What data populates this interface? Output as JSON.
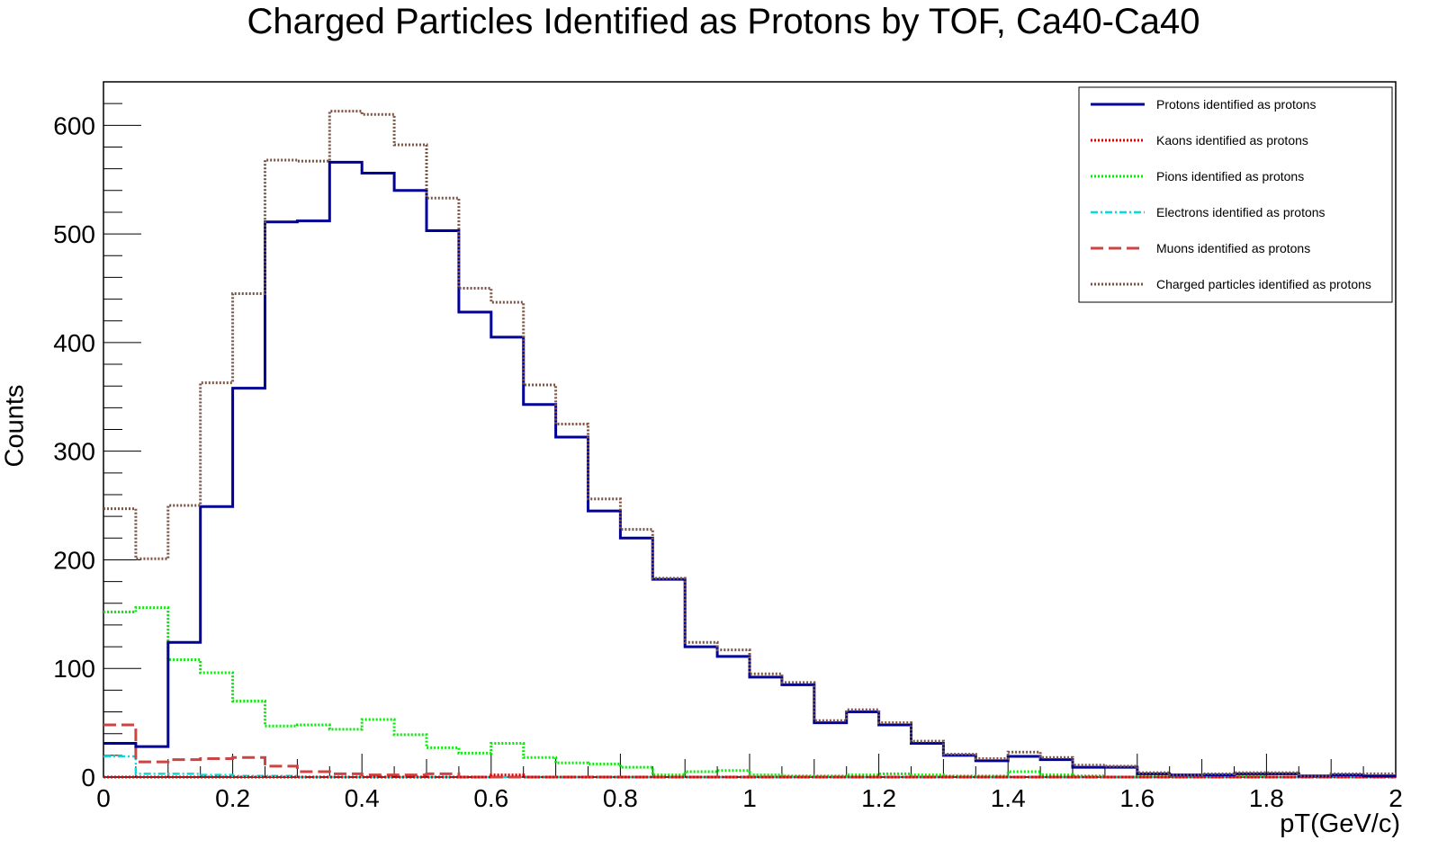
{
  "chart_data": {
    "type": "line",
    "title": "Charged Particles Identified as Protons by TOF, Ca40-Ca40",
    "xlabel": "pT(GeV/c)",
    "ylabel": "Counts",
    "xlim": [
      0,
      2
    ],
    "ylim": [
      0,
      640
    ],
    "bin_width": 0.05,
    "x_ticks": [
      "0",
      "0.2",
      "0.4",
      "0.6",
      "0.8",
      "1",
      "1.2",
      "1.4",
      "1.6",
      "1.8",
      "2"
    ],
    "y_ticks": [
      "0",
      "100",
      "200",
      "300",
      "400",
      "500",
      "600"
    ],
    "legend_position": "top-right",
    "series": [
      {
        "name": "Protons identified as protons",
        "color": "#000099",
        "style": "solid",
        "values": [
          31,
          28,
          124,
          249,
          358,
          511,
          512,
          566,
          556,
          540,
          503,
          428,
          405,
          343,
          313,
          245,
          220,
          182,
          120,
          111,
          92,
          85,
          50,
          60,
          48,
          31,
          20,
          15,
          19,
          16,
          9,
          9,
          3,
          2,
          2,
          3,
          3,
          1,
          2,
          1
        ]
      },
      {
        "name": "Kaons identified as protons",
        "color": "#dd0000",
        "style": "dotted",
        "values": [
          0,
          0,
          0,
          0,
          0,
          0,
          0,
          0,
          0,
          0,
          0,
          0,
          2,
          0,
          0,
          0,
          0,
          0,
          0,
          0,
          0,
          0,
          0,
          0,
          0,
          0,
          0,
          0,
          0,
          0,
          0,
          0,
          0,
          0,
          0,
          0,
          0,
          0,
          0,
          0
        ]
      },
      {
        "name": "Pions identified as protons",
        "color": "#00ee00",
        "style": "dotted",
        "values": [
          152,
          156,
          108,
          96,
          70,
          47,
          48,
          44,
          53,
          39,
          27,
          22,
          31,
          18,
          13,
          12,
          9,
          2,
          5,
          6,
          2,
          1,
          1,
          2,
          3,
          2,
          1,
          1,
          5,
          2,
          1,
          0,
          1,
          0,
          1,
          1,
          3,
          0,
          1,
          1
        ]
      },
      {
        "name": "Electrons identified as protons",
        "color": "#00dddd",
        "style": "dashdot",
        "values": [
          19,
          3,
          3,
          2,
          1,
          1,
          0,
          0,
          0,
          0,
          0,
          0,
          0,
          0,
          0,
          0,
          0,
          0,
          0,
          0,
          0,
          0,
          0,
          0,
          0,
          0,
          0,
          0,
          0,
          0,
          0,
          0,
          0,
          0,
          0,
          0,
          0,
          0,
          0,
          0
        ]
      },
      {
        "name": "Muons identified as protons",
        "color": "#cc4444",
        "style": "dashed",
        "values": [
          48,
          14,
          16,
          17,
          18,
          10,
          5,
          3,
          2,
          2,
          3,
          0,
          0,
          0,
          0,
          0,
          0,
          0,
          0,
          0,
          0,
          0,
          0,
          0,
          0,
          0,
          0,
          0,
          0,
          0,
          0,
          0,
          0,
          0,
          0,
          0,
          0,
          0,
          0,
          0
        ]
      },
      {
        "name": "Charged particles identified as protons",
        "color": "#7a5444",
        "style": "dotted",
        "values": [
          247,
          201,
          250,
          363,
          445,
          568,
          567,
          613,
          610,
          582,
          533,
          450,
          437,
          361,
          325,
          256,
          228,
          183,
          124,
          117,
          95,
          87,
          52,
          62,
          50,
          33,
          21,
          17,
          23,
          18,
          11,
          10,
          4,
          2,
          3,
          4,
          4,
          1,
          3,
          3
        ]
      }
    ]
  }
}
